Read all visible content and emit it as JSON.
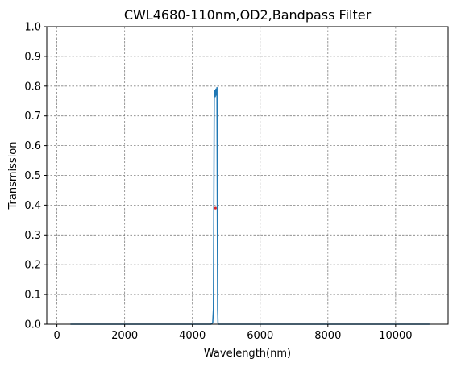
{
  "chart_data": {
    "type": "line",
    "title": "CWL4680-110nm,OD2,Bandpass Filter",
    "xlabel": "Wavelength(nm)",
    "ylabel": "Transmission",
    "xlim": [
      -300,
      11550
    ],
    "ylim": [
      0,
      1.0
    ],
    "xticks": [
      0,
      2000,
      4000,
      6000,
      8000,
      10000
    ],
    "yticks": [
      0.0,
      0.1,
      0.2,
      0.3,
      0.4,
      0.5,
      0.6,
      0.7,
      0.8,
      0.9,
      1.0
    ],
    "grid": true,
    "series": [
      {
        "color": "#1f77b4",
        "x": [
          400,
          4550,
          4600,
          4620,
          4635,
          4645,
          4655,
          4665,
          4675,
          4685,
          4695,
          4705,
          4715,
          4725,
          4735,
          4745,
          4755,
          4765,
          4775,
          5000,
          11000
        ],
        "y": [
          0.0,
          0.0,
          0.005,
          0.05,
          0.45,
          0.78,
          0.77,
          0.785,
          0.765,
          0.78,
          0.79,
          0.77,
          0.78,
          0.795,
          0.4,
          0.05,
          0.005,
          0.0,
          0.0,
          0.0,
          0.0
        ]
      }
    ],
    "marker": {
      "x": 4680,
      "y": 0.39,
      "color": "#d62728"
    }
  }
}
